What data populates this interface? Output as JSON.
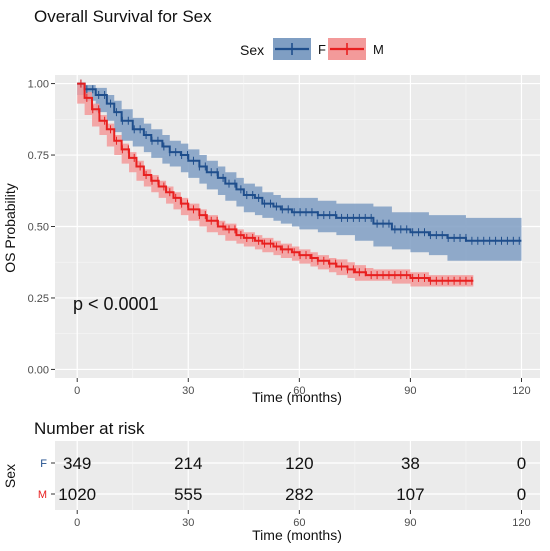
{
  "chart_data": [
    {
      "type": "line",
      "subtype": "kaplan-meier",
      "title": "Overall Survival for Sex",
      "xlabel": "Time (months)",
      "ylabel": "OS Probability",
      "xlim": [
        -6,
        125
      ],
      "ylim": [
        -0.03,
        1.03
      ],
      "x_ticks": [
        0,
        30,
        60,
        90,
        120
      ],
      "y_ticks": [
        0.0,
        0.25,
        0.5,
        0.75,
        1.0
      ],
      "y_tick_labels": [
        "0.00",
        "0.25",
        "0.50",
        "0.75",
        "1.00"
      ],
      "grid": true,
      "legend": {
        "title": "Sex",
        "position": "top",
        "entries": [
          "F",
          "M"
        ]
      },
      "annotation": "p < 0.0001",
      "series": [
        {
          "name": "F",
          "color": "#1f4e8c",
          "ci_color": "#7f9ec3",
          "x": [
            0,
            2,
            5,
            8,
            10,
            12,
            15,
            18,
            20,
            23,
            25,
            28,
            30,
            33,
            35,
            38,
            40,
            43,
            45,
            48,
            50,
            53,
            55,
            58,
            60,
            65,
            70,
            75,
            80,
            85,
            90,
            95,
            100,
            105,
            110,
            115,
            120
          ],
          "y": [
            1.0,
            0.98,
            0.96,
            0.93,
            0.9,
            0.87,
            0.84,
            0.82,
            0.8,
            0.78,
            0.76,
            0.75,
            0.73,
            0.71,
            0.69,
            0.67,
            0.65,
            0.63,
            0.61,
            0.6,
            0.58,
            0.57,
            0.56,
            0.55,
            0.55,
            0.54,
            0.53,
            0.53,
            0.51,
            0.49,
            0.48,
            0.47,
            0.46,
            0.45,
            0.45,
            0.45,
            0.45
          ],
          "ci_upper": [
            1.0,
            0.995,
            0.985,
            0.96,
            0.94,
            0.91,
            0.88,
            0.86,
            0.84,
            0.82,
            0.8,
            0.79,
            0.77,
            0.75,
            0.73,
            0.71,
            0.69,
            0.67,
            0.65,
            0.64,
            0.62,
            0.61,
            0.6,
            0.6,
            0.6,
            0.59,
            0.58,
            0.58,
            0.57,
            0.55,
            0.55,
            0.54,
            0.54,
            0.53,
            0.53,
            0.53,
            0.53
          ],
          "ci_lower": [
            1.0,
            0.96,
            0.94,
            0.9,
            0.87,
            0.83,
            0.8,
            0.78,
            0.76,
            0.74,
            0.72,
            0.71,
            0.69,
            0.67,
            0.65,
            0.63,
            0.61,
            0.59,
            0.57,
            0.55,
            0.54,
            0.53,
            0.52,
            0.51,
            0.5,
            0.49,
            0.48,
            0.47,
            0.45,
            0.43,
            0.42,
            0.41,
            0.4,
            0.38,
            0.38,
            0.38,
            0.38
          ]
        },
        {
          "name": "M",
          "color": "#e81f1f",
          "ci_color": "#f39a9a",
          "x": [
            0,
            2,
            4,
            6,
            8,
            10,
            12,
            14,
            16,
            18,
            20,
            22,
            24,
            26,
            28,
            30,
            33,
            35,
            38,
            40,
            43,
            45,
            48,
            50,
            53,
            55,
            58,
            60,
            63,
            65,
            68,
            70,
            73,
            75,
            78,
            80,
            85,
            90,
            95,
            100,
            105,
            107
          ],
          "y": [
            1.0,
            0.95,
            0.91,
            0.87,
            0.84,
            0.8,
            0.77,
            0.74,
            0.71,
            0.68,
            0.66,
            0.64,
            0.62,
            0.6,
            0.58,
            0.56,
            0.54,
            0.52,
            0.5,
            0.49,
            0.47,
            0.46,
            0.45,
            0.44,
            0.43,
            0.42,
            0.41,
            0.4,
            0.39,
            0.38,
            0.37,
            0.36,
            0.35,
            0.34,
            0.33,
            0.33,
            0.33,
            0.32,
            0.31,
            0.31,
            0.31,
            0.31
          ],
          "ci_upper": [
            1.0,
            0.97,
            0.93,
            0.89,
            0.86,
            0.82,
            0.79,
            0.76,
            0.73,
            0.7,
            0.68,
            0.66,
            0.64,
            0.62,
            0.6,
            0.58,
            0.56,
            0.54,
            0.52,
            0.51,
            0.49,
            0.48,
            0.47,
            0.46,
            0.45,
            0.44,
            0.43,
            0.42,
            0.41,
            0.4,
            0.39,
            0.385,
            0.375,
            0.365,
            0.355,
            0.35,
            0.35,
            0.34,
            0.33,
            0.33,
            0.33,
            0.33
          ],
          "ci_lower": [
            1.0,
            0.93,
            0.89,
            0.85,
            0.82,
            0.78,
            0.75,
            0.72,
            0.69,
            0.66,
            0.64,
            0.62,
            0.6,
            0.58,
            0.56,
            0.54,
            0.52,
            0.5,
            0.48,
            0.47,
            0.45,
            0.44,
            0.43,
            0.42,
            0.41,
            0.4,
            0.39,
            0.38,
            0.37,
            0.36,
            0.35,
            0.34,
            0.33,
            0.32,
            0.31,
            0.31,
            0.31,
            0.3,
            0.29,
            0.29,
            0.29,
            0.29
          ]
        }
      ]
    },
    {
      "type": "table",
      "title": "Number at risk",
      "xlabel": "Time (months)",
      "ylabel": "Sex",
      "x_ticks": [
        0,
        30,
        60,
        90,
        120
      ],
      "rows": [
        {
          "name": "F",
          "color": "#1f4e8c",
          "values": [
            349,
            214,
            120,
            38,
            0
          ]
        },
        {
          "name": "M",
          "color": "#e81f1f",
          "values": [
            1020,
            555,
            282,
            107,
            0
          ]
        }
      ]
    }
  ]
}
